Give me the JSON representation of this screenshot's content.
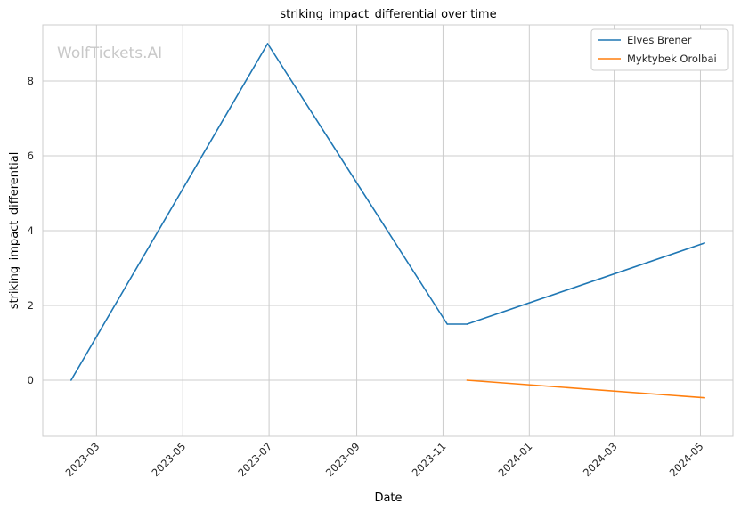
{
  "chart_data": {
    "type": "line",
    "title": "striking_impact_differential over time",
    "xlabel": "Date",
    "ylabel": "striking_impact_differential",
    "watermark": "WolfTickets.AI",
    "x_ticks": [
      "2023-03",
      "2023-05",
      "2023-07",
      "2023-09",
      "2023-11",
      "2024-01",
      "2024-03",
      "2024-05"
    ],
    "y_ticks": [
      0,
      2,
      4,
      6,
      8
    ],
    "xlim": [
      "2023-01-22",
      "2024-05-24"
    ],
    "ylim": [
      -1.5,
      9.5
    ],
    "grid": true,
    "legend_position": "top-right",
    "series": [
      {
        "name": "Elves Brener",
        "color": "#1f77b4",
        "points": [
          {
            "x": "2023-02-11",
            "y": 0.0
          },
          {
            "x": "2023-06-30",
            "y": 9.0
          },
          {
            "x": "2023-11-04",
            "y": 1.5
          },
          {
            "x": "2023-11-18",
            "y": 1.5
          },
          {
            "x": "2024-05-04",
            "y": 3.67
          }
        ]
      },
      {
        "name": "Myktybek Orolbai",
        "color": "#ff7f0e",
        "points": [
          {
            "x": "2023-11-18",
            "y": 0.0
          },
          {
            "x": "2024-05-04",
            "y": -0.47
          }
        ]
      }
    ]
  }
}
